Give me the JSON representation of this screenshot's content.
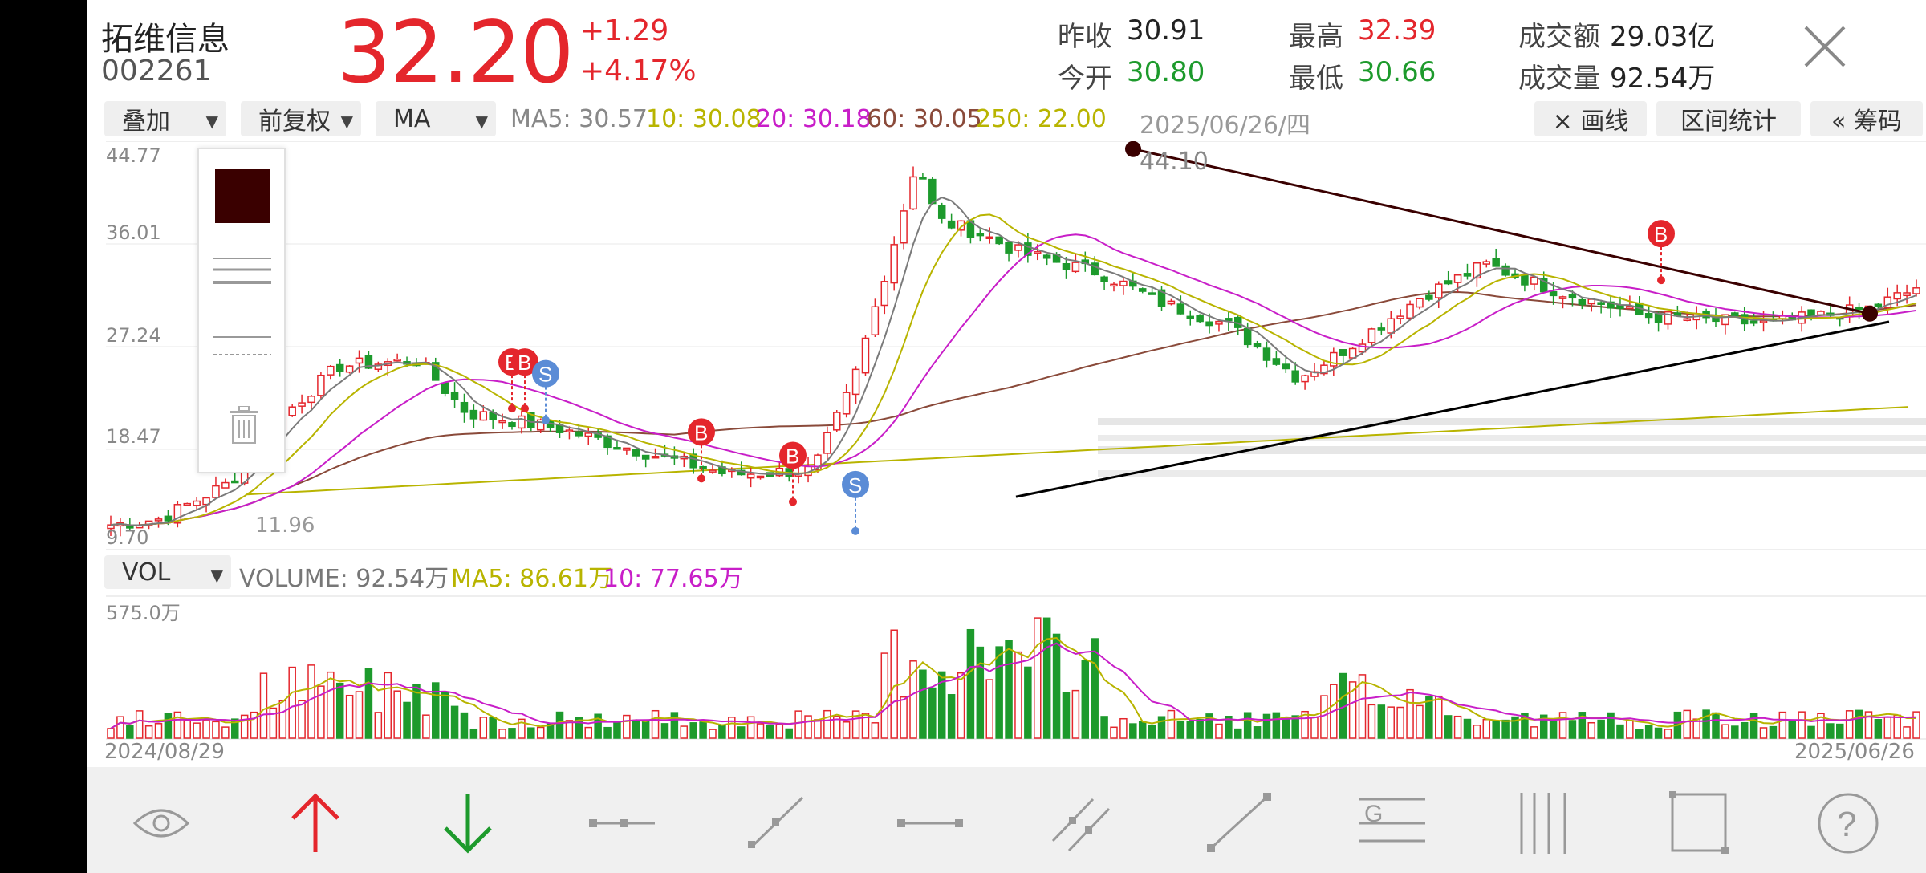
{
  "header": {
    "stock_name": "拓维信息",
    "stock_code": "002261",
    "price": "32.20",
    "change": "+1.29",
    "change_pct": "+4.17%",
    "prev_close_label": "昨收",
    "prev_close": "30.91",
    "open_label": "今开",
    "open": "30.80",
    "high_label": "最高",
    "high": "32.39",
    "low_label": "最低",
    "low": "30.66",
    "amount_label": "成交额",
    "amount": "29.03亿",
    "volume_label": "成交量",
    "volume": "92.54万"
  },
  "controls": {
    "overlay": "叠加",
    "adjust": "前复权",
    "indicator": "MA",
    "ma5": "MA5: 30.57",
    "ma10": "10: 30.08",
    "ma20": "20: 30.18",
    "ma60": "60: 30.05",
    "ma250": "250: 22.00",
    "date": "2025/06/26/四",
    "draw_line": "× 画线",
    "range_stats": "区间统计",
    "chips": "« 筹码"
  },
  "price_axis": {
    "t1": "44.77",
    "t2": "36.01",
    "t3": "27.24",
    "t4": "18.47",
    "t5": "9.70",
    "peak_label": "44.10",
    "low_label": "11.96"
  },
  "volume_panel": {
    "selector": "VOL",
    "volume": "VOLUME: 92.54万",
    "ma5": "MA5: 86.61万",
    "ma10": "10: 77.65万",
    "axis_max": "575.0万"
  },
  "dates": {
    "start": "2024/08/29",
    "end": "2025/06/26"
  },
  "signals": {
    "buy": "B",
    "sell": "S"
  },
  "colors": {
    "up": "#e4262c",
    "down": "#1d9a2c",
    "ma5": "#7a7a7a",
    "ma10": "#b8b400",
    "ma20": "#c81ec8",
    "ma60": "#8a4a3a",
    "ma250": "#b8b400"
  },
  "chart_data": {
    "type": "candlestick",
    "x_range": [
      "2024/08/29",
      "2025/06/26"
    ],
    "ylim": [
      9.7,
      44.77
    ],
    "high_marked": 44.1,
    "low_marked": 11.96,
    "last_close": 32.2
  },
  "toolbar": {
    "icons": [
      "eye-icon",
      "up-arrow-icon",
      "down-arrow-icon",
      "segment-icon",
      "ray-icon",
      "horizontal-line-icon",
      "parallel-line-icon",
      "trend-line-icon",
      "gann-icon",
      "vertical-lines-icon",
      "rectangle-icon",
      "help-icon"
    ]
  }
}
